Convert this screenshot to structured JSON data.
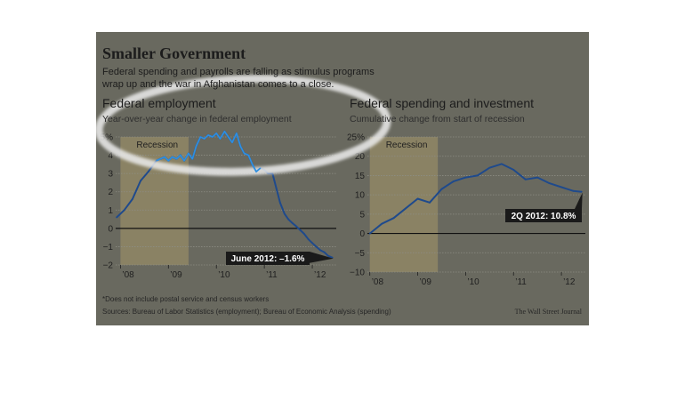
{
  "graphic": {
    "title": "Smaller Government",
    "subtitle": "Federal spending and payrolls are falling as stimulus programs wrap up and the war in Afghanistan comes to a close.",
    "footnote": "*Does not include postal service and census workers",
    "sources": "Sources: Bureau of Labor Statistics (employment); Bureau of Economic Analysis (spending)",
    "credit": "The Wall Street Journal"
  },
  "colors": {
    "background": "#69695f",
    "line": "#1f4a8c",
    "highlight_line": "#2f8fe0",
    "recession": "#8a8264",
    "callout": "#1a1a1a",
    "highlight": "#ececec"
  },
  "chart_data": [
    {
      "type": "line",
      "title": "Federal employment",
      "subtitle": "Year-over-year change in federal employment",
      "recession_label": "Recession",
      "recession": [
        2008.0,
        2009.42
      ],
      "xlim": [
        2007.9,
        2012.5
      ],
      "ylim": [
        -2,
        5
      ],
      "ytick_labels": [
        "5%",
        "4",
        "3",
        "2",
        "1",
        "0",
        "−1",
        "−2"
      ],
      "ytick_values": [
        5,
        4,
        3,
        2,
        1,
        0,
        -1,
        -2
      ],
      "xtick_labels": [
        "’08",
        "’09",
        "’10",
        "’11",
        "’12"
      ],
      "xtick_values": [
        2008,
        2009,
        2010,
        2011,
        2012
      ],
      "annotation": "June 2012: –1.6%",
      "grid": true,
      "series": [
        {
          "x": [
            2007.92,
            2008.08,
            2008.25,
            2008.42,
            2008.58,
            2008.75,
            2008.92,
            2009.0,
            2009.08,
            2009.17,
            2009.25,
            2009.33,
            2009.42,
            2009.5,
            2009.58,
            2009.67,
            2009.75,
            2009.83,
            2009.92,
            2010.0,
            2010.08,
            2010.17,
            2010.25,
            2010.33,
            2010.42,
            2010.5,
            2010.58,
            2010.67,
            2010.75,
            2010.83,
            2010.92,
            2011.0,
            2011.08,
            2011.17,
            2011.25,
            2011.33,
            2011.42,
            2011.5,
            2011.58,
            2011.67,
            2011.75,
            2011.83,
            2011.92,
            2012.0,
            2012.08,
            2012.17,
            2012.25,
            2012.33,
            2012.42
          ],
          "values": [
            0.6,
            1.0,
            1.6,
            2.6,
            3.1,
            3.7,
            3.9,
            3.7,
            3.9,
            3.8,
            4.0,
            3.7,
            4.1,
            3.8,
            4.5,
            5.0,
            4.9,
            5.1,
            5.0,
            5.2,
            4.9,
            5.3,
            5.0,
            4.7,
            5.2,
            4.5,
            4.1,
            4.0,
            3.5,
            3.1,
            3.3,
            3.2,
            3.0,
            3.0,
            2.2,
            1.4,
            0.8,
            0.5,
            0.3,
            0.1,
            -0.1,
            -0.3,
            -0.6,
            -0.8,
            -1.0,
            -1.2,
            -1.3,
            -1.5,
            -1.6
          ]
        }
      ]
    },
    {
      "type": "line",
      "title": "Federal spending and investment",
      "subtitle": "Cumulative change from start of recession",
      "recession_label": "Recession",
      "recession": [
        2008.0,
        2009.42
      ],
      "xlim": [
        2007.95,
        2012.5
      ],
      "ylim": [
        -10,
        25
      ],
      "ytick_labels": [
        "25%",
        "20",
        "15",
        "10",
        "5",
        "0",
        "−5",
        "−10"
      ],
      "ytick_values": [
        25,
        20,
        15,
        10,
        5,
        0,
        -5,
        -10
      ],
      "xtick_labels": [
        "’08",
        "’09",
        "’10",
        "’11",
        "’12"
      ],
      "xtick_values": [
        2008,
        2009,
        2010,
        2011,
        2012
      ],
      "annotation": "2Q 2012: 10.8%",
      "grid": true,
      "series": [
        {
          "x": [
            2008.0,
            2008.25,
            2008.5,
            2008.75,
            2009.0,
            2009.25,
            2009.5,
            2009.75,
            2010.0,
            2010.25,
            2010.5,
            2010.75,
            2011.0,
            2011.25,
            2011.5,
            2011.75,
            2012.0,
            2012.25,
            2012.42
          ],
          "values": [
            0,
            2.5,
            4.0,
            6.5,
            9.0,
            8.0,
            11.5,
            13.5,
            14.5,
            15.0,
            17.0,
            18.0,
            16.5,
            14.0,
            14.5,
            13.0,
            12.0,
            11.0,
            10.8
          ]
        }
      ]
    }
  ]
}
